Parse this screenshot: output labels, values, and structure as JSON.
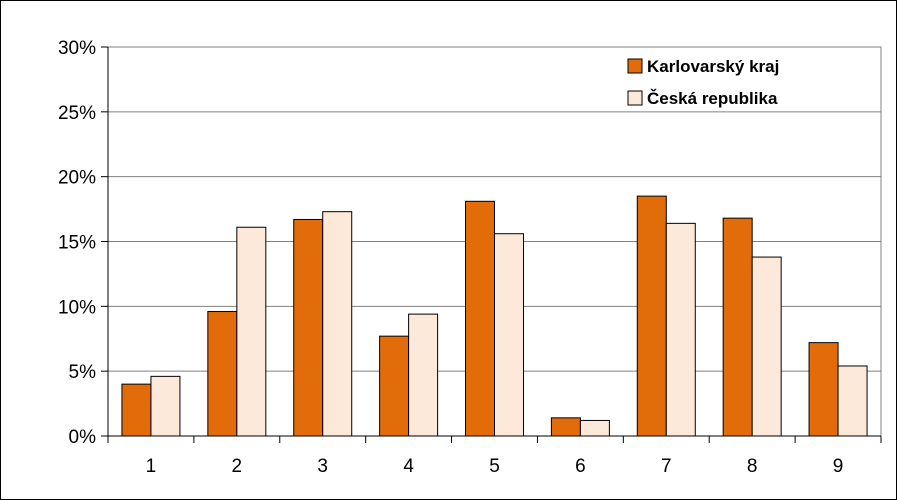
{
  "chart_data": {
    "type": "bar",
    "categories": [
      "1",
      "2",
      "3",
      "4",
      "5",
      "6",
      "7",
      "8",
      "9"
    ],
    "series": [
      {
        "name": "Karlovarský kraj",
        "values": [
          4.0,
          9.6,
          16.7,
          7.7,
          18.1,
          1.4,
          18.5,
          16.8,
          7.2
        ]
      },
      {
        "name": "Česká republika",
        "values": [
          4.6,
          16.1,
          17.3,
          9.4,
          15.6,
          1.2,
          16.4,
          13.8,
          5.4
        ]
      }
    ],
    "y_ticks": [
      "0%",
      "5%",
      "10%",
      "15%",
      "20%",
      "25%",
      "30%"
    ],
    "ylim": [
      0,
      30
    ],
    "grid": true,
    "legend_position": "top-right",
    "title": "",
    "xlabel": "",
    "ylabel": "",
    "colors": {
      "series_0": "#e36c0a",
      "series_1": "#fde9d9",
      "bar_outline": "#000000",
      "grid": "#808080"
    }
  }
}
